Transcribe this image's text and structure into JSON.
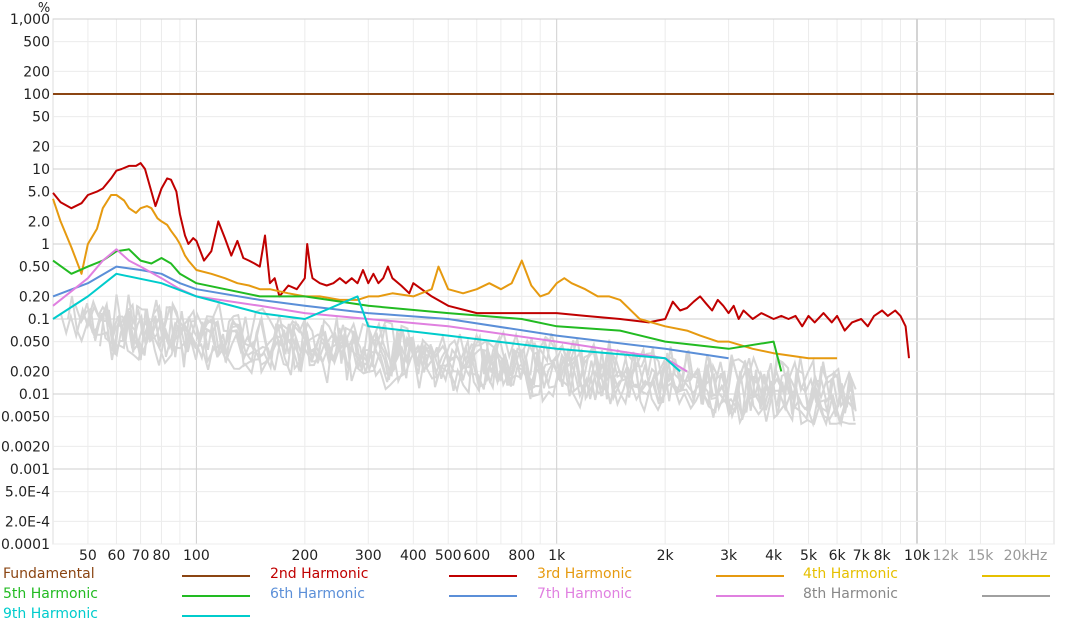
{
  "chart_data": {
    "type": "line",
    "title": "",
    "xlabel": "",
    "ylabel": "%",
    "x_scale": "log",
    "y_scale": "log",
    "xlim": [
      40,
      24000
    ],
    "ylim": [
      0.0001,
      1000
    ],
    "x_ticks": [
      {
        "value": 50,
        "label": "50",
        "highlight": false
      },
      {
        "value": 60,
        "label": "60",
        "highlight": false
      },
      {
        "value": 70,
        "label": "70",
        "highlight": false
      },
      {
        "value": 80,
        "label": "80",
        "highlight": false
      },
      {
        "value": 100,
        "label": "100",
        "highlight": false
      },
      {
        "value": 200,
        "label": "200",
        "highlight": false
      },
      {
        "value": 300,
        "label": "300",
        "highlight": false
      },
      {
        "value": 400,
        "label": "400",
        "highlight": false
      },
      {
        "value": 500,
        "label": "500",
        "highlight": false
      },
      {
        "value": 600,
        "label": "600",
        "highlight": false
      },
      {
        "value": 800,
        "label": "800",
        "highlight": false
      },
      {
        "value": 1000,
        "label": "1k",
        "highlight": false
      },
      {
        "value": 2000,
        "label": "2k",
        "highlight": false
      },
      {
        "value": 3000,
        "label": "3k",
        "highlight": false
      },
      {
        "value": 4000,
        "label": "4k",
        "highlight": false
      },
      {
        "value": 5000,
        "label": "5k",
        "highlight": false
      },
      {
        "value": 6000,
        "label": "6k",
        "highlight": false
      },
      {
        "value": 7000,
        "label": "7k",
        "highlight": false
      },
      {
        "value": 8000,
        "label": "8k",
        "highlight": false
      },
      {
        "value": 10000,
        "label": "10k",
        "highlight": true
      },
      {
        "value": 12000,
        "label": "12k",
        "highlight": false
      },
      {
        "value": 15000,
        "label": "15k",
        "highlight": false
      },
      {
        "value": 20000,
        "label": "20kHz",
        "highlight": false
      }
    ],
    "y_ticks": [
      {
        "value": 1000,
        "label": "1,000"
      },
      {
        "value": 500,
        "label": "500"
      },
      {
        "value": 200,
        "label": "200"
      },
      {
        "value": 100,
        "label": "100"
      },
      {
        "value": 50,
        "label": "50"
      },
      {
        "value": 20,
        "label": "20"
      },
      {
        "value": 10,
        "label": "10"
      },
      {
        "value": 5,
        "label": "5.0"
      },
      {
        "value": 2,
        "label": "2.0"
      },
      {
        "value": 1,
        "label": "1"
      },
      {
        "value": 0.5,
        "label": "0.50"
      },
      {
        "value": 0.2,
        "label": "0.20"
      },
      {
        "value": 0.1,
        "label": "0.1"
      },
      {
        "value": 0.05,
        "label": "0.050"
      },
      {
        "value": 0.02,
        "label": "0.020"
      },
      {
        "value": 0.01,
        "label": "0.01"
      },
      {
        "value": 0.005,
        "label": "0.0050"
      },
      {
        "value": 0.002,
        "label": "0.0020"
      },
      {
        "value": 0.001,
        "label": "0.001"
      },
      {
        "value": 0.0005,
        "label": "5.0E-4"
      },
      {
        "value": 0.0002,
        "label": "2.0E-4"
      },
      {
        "value": 0.0001,
        "label": "0.0001"
      }
    ],
    "major_y_gridlines": [
      1000,
      100,
      10,
      1,
      0.1,
      0.01,
      0.001
    ],
    "grid": true,
    "legend_position": "bottom",
    "series": [
      {
        "name": "Fundamental",
        "color": "#8B4513",
        "x": [
          40,
          24000
        ],
        "y": [
          100,
          100
        ]
      },
      {
        "name": "2nd Harmonic",
        "color": "#C00000",
        "x": [
          40,
          42,
          45,
          48,
          50,
          53,
          55,
          58,
          60,
          62,
          65,
          68,
          70,
          72,
          75,
          77,
          80,
          83,
          85,
          88,
          90,
          93,
          95,
          98,
          100,
          105,
          110,
          115,
          120,
          125,
          130,
          135,
          140,
          145,
          150,
          155,
          160,
          165,
          170,
          180,
          190,
          200,
          203,
          207,
          210,
          220,
          230,
          240,
          250,
          260,
          270,
          280,
          290,
          300,
          310,
          320,
          330,
          340,
          350,
          370,
          390,
          400,
          450,
          500,
          600,
          700,
          800,
          1000,
          1200,
          1500,
          1800,
          2000,
          2100,
          2200,
          2300,
          2400,
          2500,
          2600,
          2700,
          2800,
          2900,
          3000,
          3100,
          3200,
          3300,
          3500,
          3700,
          4000,
          4200,
          4400,
          4600,
          4800,
          5000,
          5200,
          5500,
          5800,
          6000,
          6300,
          6600,
          7000,
          7300,
          7600,
          8000,
          8300,
          8700,
          9000,
          9300,
          9500
        ],
        "y": [
          4.8,
          3.6,
          3.0,
          3.5,
          4.5,
          5.0,
          5.5,
          7.5,
          9.5,
          10,
          11,
          11,
          12,
          10,
          5,
          3.2,
          5.5,
          7.5,
          7.2,
          5,
          2.5,
          1.3,
          1,
          1.2,
          1.1,
          0.6,
          0.8,
          2.0,
          1.2,
          0.7,
          1.1,
          0.65,
          0.6,
          0.55,
          0.5,
          1.3,
          0.3,
          0.35,
          0.2,
          0.28,
          0.25,
          0.35,
          1.0,
          0.5,
          0.35,
          0.3,
          0.28,
          0.3,
          0.35,
          0.3,
          0.35,
          0.3,
          0.45,
          0.3,
          0.4,
          0.3,
          0.35,
          0.5,
          0.35,
          0.28,
          0.22,
          0.3,
          0.2,
          0.15,
          0.12,
          0.12,
          0.12,
          0.12,
          0.11,
          0.1,
          0.09,
          0.1,
          0.17,
          0.13,
          0.14,
          0.17,
          0.2,
          0.16,
          0.13,
          0.18,
          0.15,
          0.12,
          0.15,
          0.1,
          0.13,
          0.1,
          0.12,
          0.1,
          0.11,
          0.1,
          0.11,
          0.08,
          0.11,
          0.09,
          0.12,
          0.09,
          0.11,
          0.07,
          0.09,
          0.1,
          0.08,
          0.11,
          0.13,
          0.11,
          0.13,
          0.11,
          0.08,
          0.03
        ]
      },
      {
        "name": "3rd Harmonic",
        "color": "#E69A10",
        "x": [
          40,
          42,
          45,
          48,
          50,
          53,
          55,
          58,
          60,
          63,
          65,
          68,
          70,
          73,
          75,
          78,
          80,
          83,
          85,
          88,
          90,
          93,
          95,
          100,
          110,
          120,
          130,
          140,
          150,
          160,
          180,
          200,
          220,
          250,
          280,
          300,
          320,
          350,
          400,
          450,
          470,
          500,
          550,
          600,
          650,
          700,
          750,
          800,
          850,
          900,
          950,
          1000,
          1050,
          1100,
          1200,
          1300,
          1400,
          1500,
          1700,
          2000,
          2300,
          2500,
          2800,
          3000,
          3500,
          4000,
          5000,
          6000
        ],
        "y": [
          4.0,
          2.0,
          0.9,
          0.4,
          1.0,
          1.6,
          3.0,
          4.5,
          4.5,
          3.8,
          3.0,
          2.6,
          3.0,
          3.2,
          3.0,
          2.2,
          2.0,
          1.8,
          1.5,
          1.2,
          1.0,
          0.7,
          0.6,
          0.45,
          0.4,
          0.35,
          0.3,
          0.28,
          0.25,
          0.25,
          0.22,
          0.2,
          0.2,
          0.18,
          0.18,
          0.2,
          0.2,
          0.22,
          0.2,
          0.25,
          0.5,
          0.25,
          0.22,
          0.25,
          0.3,
          0.25,
          0.3,
          0.6,
          0.28,
          0.2,
          0.22,
          0.3,
          0.35,
          0.3,
          0.25,
          0.2,
          0.2,
          0.18,
          0.1,
          0.08,
          0.07,
          0.06,
          0.05,
          0.05,
          0.04,
          0.035,
          0.03,
          0.03
        ]
      },
      {
        "name": "4th Harmonic",
        "color": "#E6C000",
        "x": [],
        "y": []
      },
      {
        "name": "5th Harmonic",
        "color": "#22BB22",
        "x": [
          40,
          45,
          50,
          55,
          60,
          65,
          70,
          75,
          80,
          85,
          90,
          100,
          150,
          200,
          300,
          500,
          800,
          1000,
          1500,
          2000,
          3000,
          4000,
          4200
        ],
        "y": [
          0.6,
          0.4,
          0.5,
          0.6,
          0.8,
          0.85,
          0.6,
          0.55,
          0.65,
          0.55,
          0.4,
          0.3,
          0.2,
          0.2,
          0.15,
          0.12,
          0.1,
          0.08,
          0.07,
          0.05,
          0.04,
          0.05,
          0.02
        ]
      },
      {
        "name": "6th Harmonic",
        "color": "#5B8FD8",
        "x": [
          40,
          50,
          60,
          70,
          80,
          90,
          100,
          150,
          200,
          300,
          500,
          1000,
          2000,
          3000
        ],
        "y": [
          0.2,
          0.3,
          0.5,
          0.45,
          0.4,
          0.3,
          0.25,
          0.18,
          0.15,
          0.12,
          0.1,
          0.06,
          0.04,
          0.03
        ]
      },
      {
        "name": "7th Harmonic",
        "color": "#E080E0",
        "x": [
          40,
          50,
          55,
          60,
          65,
          70,
          80,
          90,
          100,
          150,
          200,
          300,
          500,
          1000,
          2000,
          2300
        ],
        "y": [
          0.15,
          0.35,
          0.6,
          0.85,
          0.6,
          0.5,
          0.35,
          0.25,
          0.2,
          0.15,
          0.12,
          0.1,
          0.08,
          0.05,
          0.03,
          0.02
        ]
      },
      {
        "name": "8th Harmonic",
        "color": "#A0A0A0",
        "x": [],
        "y": []
      },
      {
        "name": "9th Harmonic",
        "color": "#00CCCC",
        "x": [
          40,
          50,
          60,
          80,
          100,
          150,
          200,
          280,
          300,
          500,
          1000,
          2000,
          2200
        ],
        "y": [
          0.1,
          0.2,
          0.4,
          0.3,
          0.2,
          0.12,
          0.1,
          0.2,
          0.08,
          0.06,
          0.04,
          0.03,
          0.02
        ]
      }
    ]
  },
  "legend": [
    {
      "label": "Fundamental",
      "color": "#8B4513",
      "label_color": "#8B4513"
    },
    {
      "label": "2nd Harmonic",
      "color": "#C00000",
      "label_color": "#C00000"
    },
    {
      "label": "3rd Harmonic",
      "color": "#E69A10",
      "label_color": "#E69A10"
    },
    {
      "label": "4th Harmonic",
      "color": "#E6C000",
      "label_color": "#E6C000"
    },
    {
      "label": "5th Harmonic",
      "color": "#22BB22",
      "label_color": "#22BB22"
    },
    {
      "label": "6th Harmonic",
      "color": "#5B8FD8",
      "label_color": "#5B8FD8"
    },
    {
      "label": "7th Harmonic",
      "color": "#E080E0",
      "label_color": "#E080E0"
    },
    {
      "label": "8th Harmonic",
      "color": "#A0A0A0",
      "label_color": "#888888"
    },
    {
      "label": "9th Harmonic",
      "color": "#00CCCC",
      "label_color": "#00CCCC"
    }
  ]
}
